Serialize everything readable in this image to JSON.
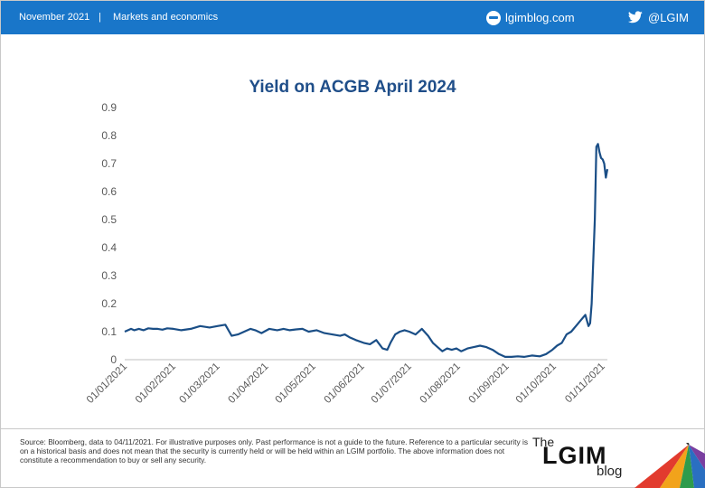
{
  "header": {
    "date": "November 2021",
    "separator": "|",
    "section": "Markets and economics",
    "website": "lgimblog.com",
    "twitter": "@LGIM",
    "background_color": "#1976c9"
  },
  "chart_data": {
    "type": "line",
    "title": "Yield on ACGB April 2024",
    "xlabel": "",
    "ylabel": "",
    "ylim": [
      0,
      0.9
    ],
    "yticks": [
      "0",
      "0.1",
      "0.2",
      "0.3",
      "0.4",
      "0.5",
      "0.6",
      "0.7",
      "0.8",
      "0.9"
    ],
    "xticks": [
      "01/01/2021",
      "01/02/2021",
      "01/03/2021",
      "01/04/2021",
      "01/05/2021",
      "01/06/2021",
      "01/07/2021",
      "01/08/2021",
      "01/09/2021",
      "01/10/2021",
      "01/11/2021"
    ],
    "xlim": [
      "2021-01-01",
      "2021-11-04"
    ],
    "line_color": "#1a4e86",
    "grid": false,
    "series": [
      {
        "x": [
          "2021-01-01",
          "2021-01-05",
          "2021-01-07",
          "2021-01-10",
          "2021-01-13",
          "2021-01-16",
          "2021-01-19",
          "2021-01-22",
          "2021-01-25",
          "2021-01-28",
          "2021-02-01",
          "2021-02-06",
          "2021-02-12",
          "2021-02-18",
          "2021-02-24",
          "2021-03-01",
          "2021-03-06",
          "2021-03-10",
          "2021-03-14",
          "2021-03-18",
          "2021-03-22",
          "2021-03-25",
          "2021-03-29",
          "2021-04-03",
          "2021-04-08",
          "2021-04-12",
          "2021-04-16",
          "2021-04-20",
          "2021-04-24",
          "2021-04-28",
          "2021-05-03",
          "2021-05-08",
          "2021-05-13",
          "2021-05-18",
          "2021-05-21",
          "2021-05-24",
          "2021-05-28",
          "2021-06-02",
          "2021-06-06",
          "2021-06-10",
          "2021-06-14",
          "2021-06-17",
          "2021-06-19",
          "2021-06-22",
          "2021-06-25",
          "2021-06-28",
          "2021-07-01",
          "2021-07-05",
          "2021-07-09",
          "2021-07-13",
          "2021-07-16",
          "2021-07-19",
          "2021-07-22",
          "2021-07-25",
          "2021-07-28",
          "2021-07-31",
          "2021-08-03",
          "2021-08-07",
          "2021-08-11",
          "2021-08-15",
          "2021-08-19",
          "2021-08-23",
          "2021-08-27",
          "2021-08-31",
          "2021-09-04",
          "2021-09-08",
          "2021-09-12",
          "2021-09-17",
          "2021-09-22",
          "2021-09-26",
          "2021-09-30",
          "2021-10-03",
          "2021-10-06",
          "2021-10-09",
          "2021-10-12",
          "2021-10-15",
          "2021-10-18",
          "2021-10-21",
          "2021-10-23",
          "2021-10-24",
          "2021-10-25",
          "2021-10-27",
          "2021-10-28",
          "2021-10-29",
          "2021-10-30",
          "2021-10-31",
          "2021-11-01",
          "2021-11-02",
          "2021-11-03",
          "2021-11-04"
        ],
        "y": [
          0.1,
          0.11,
          0.105,
          0.11,
          0.105,
          0.112,
          0.11,
          0.11,
          0.107,
          0.112,
          0.11,
          0.105,
          0.11,
          0.12,
          0.115,
          0.12,
          0.125,
          0.085,
          0.09,
          0.1,
          0.11,
          0.105,
          0.095,
          0.11,
          0.105,
          0.11,
          0.105,
          0.108,
          0.11,
          0.1,
          0.105,
          0.095,
          0.09,
          0.085,
          0.09,
          0.08,
          0.07,
          0.06,
          0.055,
          0.07,
          0.04,
          0.035,
          0.06,
          0.09,
          0.1,
          0.105,
          0.1,
          0.09,
          0.11,
          0.085,
          0.06,
          0.045,
          0.03,
          0.04,
          0.035,
          0.04,
          0.03,
          0.04,
          0.045,
          0.05,
          0.045,
          0.035,
          0.02,
          0.01,
          0.01,
          0.012,
          0.01,
          0.015,
          0.012,
          0.02,
          0.035,
          0.05,
          0.06,
          0.09,
          0.1,
          0.12,
          0.14,
          0.16,
          0.12,
          0.13,
          0.2,
          0.5,
          0.76,
          0.77,
          0.74,
          0.72,
          0.715,
          0.7,
          0.65,
          0.68
        ]
      }
    ]
  },
  "footer": {
    "source": "Source: Bloomberg, data to 04/11/2021. For illustrative purposes only. Past performance is not a guide to the future. Reference to a particular security is on a historical basis and does not mean that the security is currently held or will be held within an LGIM portfolio. The above information does not constitute a recommendation to buy or sell any security.",
    "logo_the": "The",
    "logo_lgim": "LGIM",
    "logo_blog": "blog"
  }
}
